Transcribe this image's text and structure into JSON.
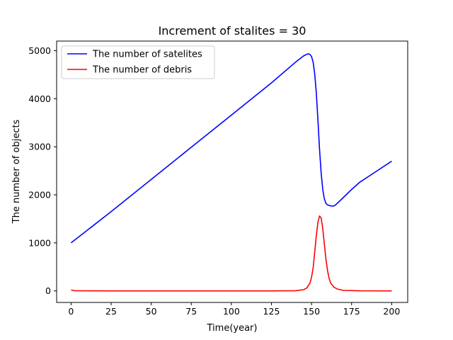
{
  "chart_data": {
    "type": "line",
    "title": "Increment of stalites = 30",
    "xlabel": "Time(year)",
    "ylabel": "The number of objects",
    "xlim": [
      -9,
      210
    ],
    "ylim": [
      -240,
      5200
    ],
    "xticks": [
      0,
      25,
      50,
      75,
      100,
      125,
      150,
      175,
      200
    ],
    "yticks": [
      0,
      1000,
      2000,
      3000,
      4000,
      5000
    ],
    "legend_position": "top-left",
    "grid": false,
    "series": [
      {
        "name": "The number of satelites",
        "color": "#0000ff",
        "points": [
          [
            0,
            1000
          ],
          [
            25,
            1650
          ],
          [
            50,
            2320
          ],
          [
            75,
            2990
          ],
          [
            100,
            3660
          ],
          [
            125,
            4330
          ],
          [
            140,
            4760
          ],
          [
            145,
            4890
          ],
          [
            147,
            4925
          ],
          [
            148,
            4935
          ],
          [
            149,
            4925
          ],
          [
            150,
            4880
          ],
          [
            151,
            4760
          ],
          [
            152,
            4520
          ],
          [
            153,
            4120
          ],
          [
            154,
            3550
          ],
          [
            155,
            2960
          ],
          [
            156,
            2460
          ],
          [
            157,
            2110
          ],
          [
            158,
            1920
          ],
          [
            159,
            1820
          ],
          [
            160,
            1790
          ],
          [
            161,
            1780
          ],
          [
            162,
            1770
          ],
          [
            163,
            1765
          ],
          [
            164,
            1770
          ],
          [
            165,
            1790
          ],
          [
            170,
            1950
          ],
          [
            175,
            2110
          ],
          [
            180,
            2260
          ],
          [
            190,
            2480
          ],
          [
            200,
            2700
          ]
        ]
      },
      {
        "name": "The number of debris",
        "color": "#ff0000",
        "points": [
          [
            0,
            20
          ],
          [
            2,
            5
          ],
          [
            25,
            0
          ],
          [
            50,
            0
          ],
          [
            75,
            0
          ],
          [
            100,
            0
          ],
          [
            125,
            0
          ],
          [
            140,
            5
          ],
          [
            145,
            25
          ],
          [
            147,
            60
          ],
          [
            149,
            160
          ],
          [
            150,
            280
          ],
          [
            151,
            480
          ],
          [
            152,
            800
          ],
          [
            153,
            1150
          ],
          [
            154,
            1430
          ],
          [
            155,
            1560
          ],
          [
            156,
            1520
          ],
          [
            157,
            1300
          ],
          [
            158,
            980
          ],
          [
            159,
            660
          ],
          [
            160,
            420
          ],
          [
            161,
            260
          ],
          [
            162,
            160
          ],
          [
            164,
            80
          ],
          [
            166,
            40
          ],
          [
            170,
            10
          ],
          [
            180,
            2
          ],
          [
            200,
            0
          ]
        ]
      }
    ]
  }
}
